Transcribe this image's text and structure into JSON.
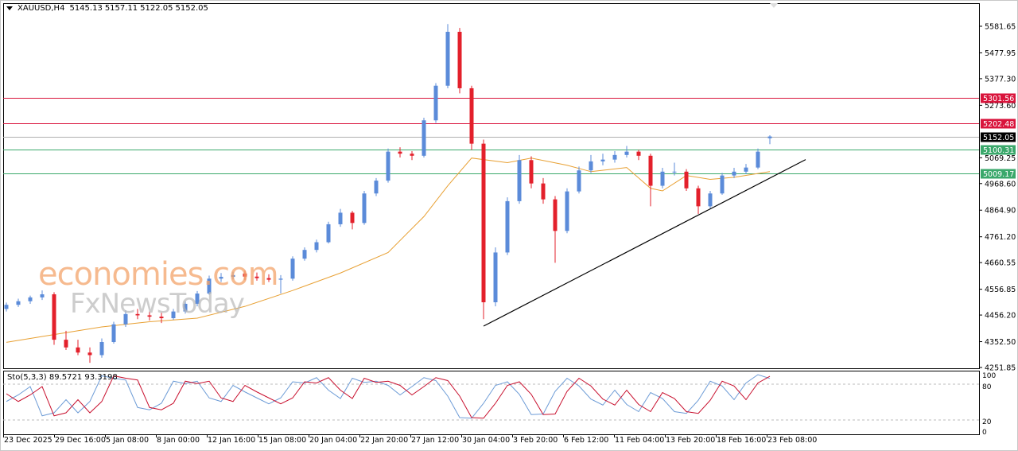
{
  "header": {
    "symbol": "XAUUSD,H4",
    "open": "5145.13",
    "high": "5157.11",
    "low": "5122.05",
    "close": "5152.05"
  },
  "watermark": {
    "line1": "economies.com",
    "line2": "FxNewsToday"
  },
  "colors": {
    "bull": "#5b8bd9",
    "bear": "#e3202b",
    "ma": "#e8a033",
    "resistance": "#d9143c",
    "support": "#3aa86b",
    "current": "#000000",
    "trendline": "#000000",
    "stoch_main": "#6c9bd6",
    "stoch_signal": "#c8102e"
  },
  "chart_data": [
    {
      "type": "candlestick",
      "title": "",
      "ylim": [
        4251.85,
        5581.65
      ],
      "y_ticks": [
        "5581.65",
        "5477.95",
        "5377.30",
        "5273.60",
        "5069.25",
        "4968.60",
        "4864.90",
        "4761.20",
        "4660.55",
        "4556.85",
        "4456.20",
        "4352.50",
        "4251.85"
      ],
      "x_ticks": [
        "23 Dec 2025",
        "29 Dec 16:00",
        "5 Jan 08:00",
        "8 Jan 00:00",
        "12 Jan 16:00",
        "15 Jan 08:00",
        "20 Jan 04:00",
        "22 Jan 20:00",
        "27 Jan 12:00",
        "30 Jan 04:00",
        "3 Feb 20:00",
        "6 Feb 12:00",
        "11 Feb 04:00",
        "13 Feb 20:00",
        "18 Feb 16:00",
        "23 Feb 08:00"
      ],
      "ohlc": [
        [
          4480,
          4505,
          4470,
          4496
        ],
        [
          4496,
          4520,
          4488,
          4510
        ],
        [
          4510,
          4532,
          4500,
          4525
        ],
        [
          4525,
          4552,
          4515,
          4537
        ],
        [
          4537,
          4545,
          4340,
          4360
        ],
        [
          4360,
          4395,
          4320,
          4330
        ],
        [
          4330,
          4360,
          4300,
          4310
        ],
        [
          4310,
          4330,
          4270,
          4300
        ],
        [
          4300,
          4365,
          4290,
          4351
        ],
        [
          4351,
          4430,
          4345,
          4420
        ],
        [
          4420,
          4475,
          4410,
          4460
        ],
        [
          4460,
          4480,
          4440,
          4455
        ],
        [
          4455,
          4470,
          4435,
          4450
        ],
        [
          4450,
          4465,
          4425,
          4444
        ],
        [
          4444,
          4480,
          4438,
          4470
        ],
        [
          4470,
          4510,
          4462,
          4500
        ],
        [
          4500,
          4550,
          4490,
          4540
        ],
        [
          4540,
          4610,
          4535,
          4598
        ],
        [
          4598,
          4620,
          4585,
          4605
        ],
        [
          4605,
          4625,
          4595,
          4612
        ],
        [
          4618,
          4630,
          4592,
          4606
        ],
        [
          4606,
          4622,
          4590,
          4600
        ],
        [
          4600,
          4615,
          4585,
          4594
        ],
        [
          4594,
          4612,
          4540,
          4598
        ],
        [
          4598,
          4685,
          4590,
          4676
        ],
        [
          4676,
          4720,
          4668,
          4710
        ],
        [
          4710,
          4750,
          4700,
          4740
        ],
        [
          4740,
          4820,
          4735,
          4810
        ],
        [
          4810,
          4870,
          4800,
          4855
        ],
        [
          4855,
          4862,
          4790,
          4815
        ],
        [
          4815,
          4940,
          4808,
          4930
        ],
        [
          4930,
          4990,
          4920,
          4980
        ],
        [
          4980,
          5105,
          4972,
          5093
        ],
        [
          5093,
          5110,
          5070,
          5085
        ],
        [
          5085,
          5095,
          5060,
          5077
        ],
        [
          5077,
          5225,
          5070,
          5215
        ],
        [
          5215,
          5360,
          5205,
          5350
        ],
        [
          5350,
          5590,
          5340,
          5560
        ],
        [
          5560,
          5575,
          5320,
          5340
        ],
        [
          5340,
          5350,
          5100,
          5124
        ],
        [
          5124,
          5140,
          4440,
          4506
        ],
        [
          4506,
          4720,
          4490,
          4700
        ],
        [
          4700,
          4915,
          4690,
          4900
        ],
        [
          4900,
          5080,
          4890,
          5060
        ],
        [
          5060,
          5075,
          4950,
          4969
        ],
        [
          4969,
          4990,
          4890,
          4907
        ],
        [
          4907,
          4920,
          4660,
          4784
        ],
        [
          4784,
          4950,
          4775,
          4938
        ],
        [
          4938,
          5035,
          4930,
          5020
        ],
        [
          5020,
          5080,
          5010,
          5055
        ],
        [
          5055,
          5085,
          5040,
          5062
        ],
        [
          5062,
          5095,
          5050,
          5080
        ],
        [
          5080,
          5115,
          5070,
          5093
        ],
        [
          5093,
          5100,
          5060,
          5077
        ],
        [
          5077,
          5085,
          4880,
          4960
        ],
        [
          4960,
          5030,
          4950,
          5015
        ],
        [
          5015,
          5050,
          5000,
          5015
        ],
        [
          5015,
          5025,
          4940,
          4950
        ],
        [
          4950,
          4960,
          4850,
          4880
        ],
        [
          4880,
          4940,
          4870,
          4930
        ],
        [
          4930,
          5010,
          4925,
          5000
        ],
        [
          5000,
          5030,
          4990,
          5015
        ],
        [
          5015,
          5045,
          5005,
          5031
        ],
        [
          5031,
          5105,
          5025,
          5093
        ],
        [
          5145.13,
          5157.11,
          5122.05,
          5152.05
        ]
      ],
      "moving_average": [
        {
          "bar": 0,
          "value": 4350
        },
        {
          "bar": 4,
          "value": 4380
        },
        {
          "bar": 8,
          "value": 4410
        },
        {
          "bar": 12,
          "value": 4430
        },
        {
          "bar": 16,
          "value": 4444
        },
        {
          "bar": 20,
          "value": 4490
        },
        {
          "bar": 24,
          "value": 4552
        },
        {
          "bar": 28,
          "value": 4620
        },
        {
          "bar": 32,
          "value": 4700
        },
        {
          "bar": 35,
          "value": 4840
        },
        {
          "bar": 37,
          "value": 4960
        },
        {
          "bar": 39,
          "value": 5068
        },
        {
          "bar": 42,
          "value": 5050
        },
        {
          "bar": 44,
          "value": 5068
        },
        {
          "bar": 47,
          "value": 5040
        },
        {
          "bar": 49,
          "value": 5015
        },
        {
          "bar": 52,
          "value": 5031
        },
        {
          "bar": 54,
          "value": 4950
        },
        {
          "bar": 55,
          "value": 4940
        },
        {
          "bar": 57,
          "value": 5000
        },
        {
          "bar": 59,
          "value": 4985
        },
        {
          "bar": 61,
          "value": 4993
        },
        {
          "bar": 64,
          "value": 5015
        }
      ],
      "horizontal_levels": [
        {
          "value": 5301.56,
          "label": "5301.56",
          "kind": "resistance"
        },
        {
          "value": 5202.48,
          "label": "5202.48",
          "kind": "resistance"
        },
        {
          "value": 5152.05,
          "label": "5152.05",
          "kind": "current"
        },
        {
          "value": 5100.31,
          "label": "5100.31",
          "kind": "support"
        },
        {
          "value": 5009.17,
          "label": "5009.17",
          "kind": "support"
        }
      ],
      "trendline": {
        "from": {
          "bar": 40,
          "value": 4413
        },
        "to": {
          "bar": 67,
          "value": 5062
        }
      }
    },
    {
      "type": "line",
      "label": "Sto(5,3,3)",
      "main_value": "89.5721",
      "signal_value": "93.3198",
      "ylim": [
        0,
        100
      ],
      "y_ticks": [
        "100",
        "80",
        "20",
        "0"
      ],
      "levels": [
        80,
        20
      ],
      "series": [
        {
          "name": "main",
          "values": [
            51,
            62,
            76,
            27,
            32,
            54,
            32,
            51,
            94,
            90,
            87,
            41,
            37,
            48,
            85,
            81,
            85,
            57,
            51,
            78,
            67,
            57,
            47,
            57,
            84,
            82,
            91,
            70,
            56,
            90,
            83,
            85,
            78,
            62,
            76,
            91,
            86,
            60,
            24,
            23,
            48,
            78,
            84,
            63,
            29,
            30,
            68,
            90,
            77,
            55,
            45,
            70,
            46,
            34,
            66,
            56,
            34,
            31,
            53,
            85,
            77,
            54,
            82,
            96,
            89.57
          ]
        },
        {
          "name": "signal",
          "values": [
            64,
            51,
            62,
            76,
            27,
            32,
            54,
            32,
            51,
            94,
            90,
            87,
            41,
            37,
            48,
            85,
            81,
            85,
            57,
            51,
            78,
            67,
            57,
            47,
            57,
            84,
            82,
            91,
            70,
            56,
            90,
            83,
            85,
            78,
            62,
            76,
            91,
            86,
            60,
            24,
            23,
            48,
            78,
            84,
            63,
            29,
            30,
            68,
            90,
            77,
            55,
            45,
            70,
            46,
            34,
            66,
            56,
            34,
            31,
            53,
            85,
            77,
            54,
            82,
            93.32
          ]
        }
      ]
    }
  ]
}
